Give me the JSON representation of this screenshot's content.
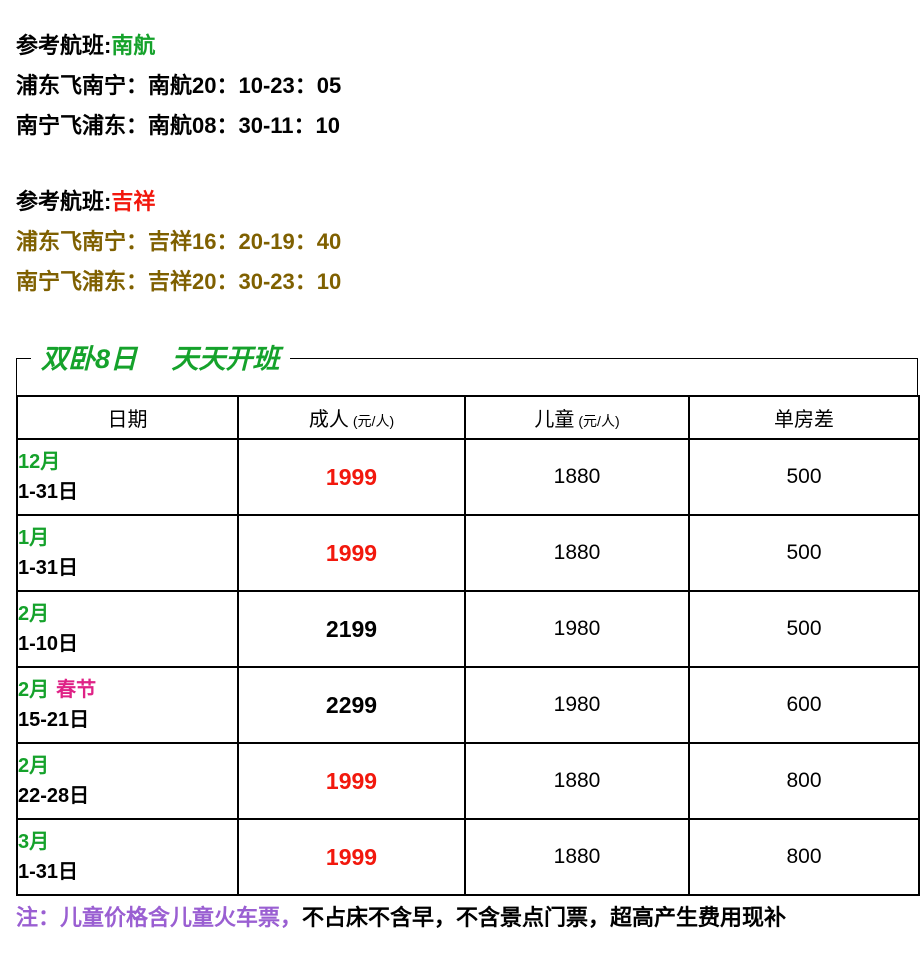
{
  "colors": {
    "green": "#15A22B",
    "red": "#F2180D",
    "gold": "#7F6000",
    "magenta": "#DF2286",
    "purple": "#9A5FD2"
  },
  "flights": [
    {
      "heading_prefix": "参考航班:",
      "airline": "南航",
      "lines": [
        "浦东飞南宁：南航20：10-23：05",
        "南宁飞浦东：南航08：30-11：10"
      ]
    },
    {
      "heading_prefix": "参考航班:",
      "airline": "吉祥",
      "lines": [
        "浦东飞南宁：吉祥16：20-19：40",
        "南宁飞浦东：吉祥20：30-23：10"
      ]
    }
  ],
  "panel": {
    "title": "双卧8日　 天天开班",
    "table": {
      "headers": [
        {
          "label": "日期",
          "unit": ""
        },
        {
          "label": "成人",
          "unit": "(元/人)"
        },
        {
          "label": "儿童",
          "unit": "(元/人)"
        },
        {
          "label": "单房差",
          "unit": ""
        }
      ],
      "rows": [
        {
          "month": "12月",
          "holiday": "",
          "dates": "1-31日",
          "adult": "1999",
          "adult_red": true,
          "child": "1880",
          "single_supplement": "500"
        },
        {
          "month": "1月",
          "holiday": "",
          "dates": "1-31日",
          "adult": "1999",
          "adult_red": true,
          "child": "1880",
          "single_supplement": "500"
        },
        {
          "month": "2月",
          "holiday": "",
          "dates": "1-10日",
          "adult": "2199",
          "adult_red": false,
          "child": "1980",
          "single_supplement": "500"
        },
        {
          "month": "2月",
          "holiday": "春节",
          "dates": "15-21日",
          "adult": "2299",
          "adult_red": false,
          "child": "1980",
          "single_supplement": "600"
        },
        {
          "month": "2月",
          "holiday": "",
          "dates": "22-28日",
          "adult": "1999",
          "adult_red": true,
          "child": "1880",
          "single_supplement": "800"
        },
        {
          "month": "3月",
          "holiday": "",
          "dates": "1-31日",
          "adult": "1999",
          "adult_red": true,
          "child": "1880",
          "single_supplement": "800"
        }
      ]
    }
  },
  "footnote": {
    "highlight": "注：儿童价格含儿童火车票，",
    "rest": "不占床不含早，不含景点门票，超高产生费用现补"
  }
}
